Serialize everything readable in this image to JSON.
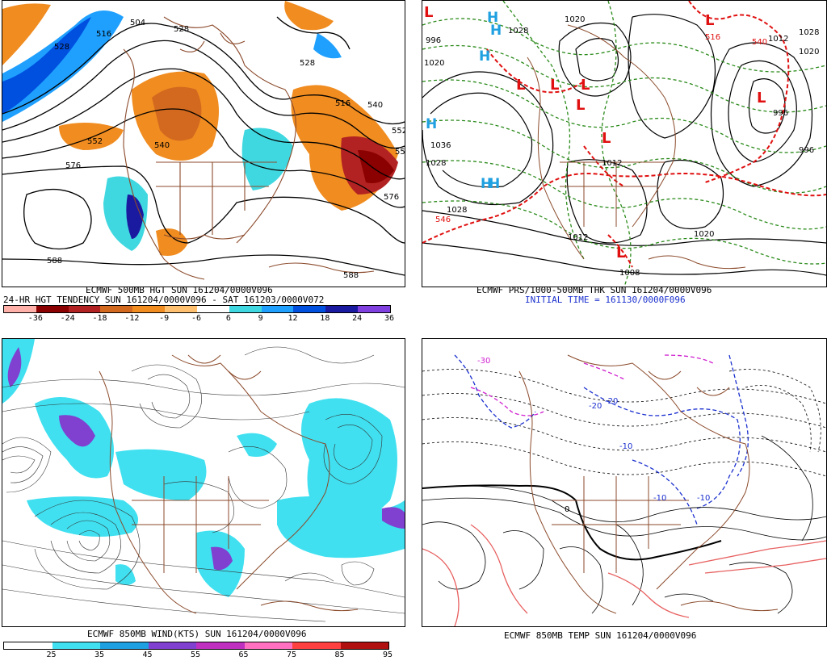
{
  "panels": [
    {
      "id": "p1",
      "caption_line1": "ECMWF 500MB HGT SUN 161204/0000V096",
      "caption_line2": "24-HR HGT TENDENCY SUN 161204/0000V096 - SAT 161203/0000V072",
      "contour_labels": [
        "504",
        "516",
        "528",
        "528",
        "540",
        "552",
        "576",
        "588",
        "516",
        "540",
        "552",
        "576",
        "528",
        "588",
        "55"
      ],
      "colorbar": {
        "ticks": [
          "-36",
          "-24",
          "-18",
          "-12",
          "-9",
          "-6",
          "6",
          "9",
          "12",
          "18",
          "24",
          "36"
        ],
        "colors": [
          "#ffb0a8",
          "#8b0000",
          "#b22222",
          "#d2691e",
          "#f08c20",
          "#ffc070",
          "#ffffff",
          "#40d8e0",
          "#1fa0ff",
          "#0050e0",
          "#1a1aa0",
          "#8040e0"
        ]
      }
    },
    {
      "id": "p2",
      "caption_line1": "ECMWF PRS/1000-500MB THK SUN 161204/0000V096",
      "caption_line2": "INITIAL TIME = 161130/0000F096",
      "highs_label": "H",
      "lows_label": "L",
      "contour_labels": [
        "1020",
        "1028",
        "1036",
        "1028",
        "1028",
        "1012",
        "996",
        "1020",
        "1012",
        "1028",
        "1020",
        "1012",
        "996",
        "1008",
        "546",
        "540",
        "516",
        "996",
        "1020"
      ]
    },
    {
      "id": "p3",
      "caption_line1": "ECMWF 850MB WIND(KTS) SUN 161204/0000V096",
      "colorbar": {
        "ticks": [
          "25",
          "35",
          "45",
          "55",
          "65",
          "75",
          "85",
          "95"
        ],
        "colors": [
          "#ffffff",
          "#40e0f0",
          "#1fa0e0",
          "#8040d0",
          "#c030c0",
          "#ff70c0",
          "#ff4040",
          "#b01010"
        ]
      }
    },
    {
      "id": "p4",
      "caption_line1": "ECMWF 850MB TEMP SUN 161204/0000V096",
      "contour_labels": [
        "-30",
        "-20",
        "-20",
        "-10",
        "-10",
        "-10",
        "0"
      ]
    }
  ]
}
